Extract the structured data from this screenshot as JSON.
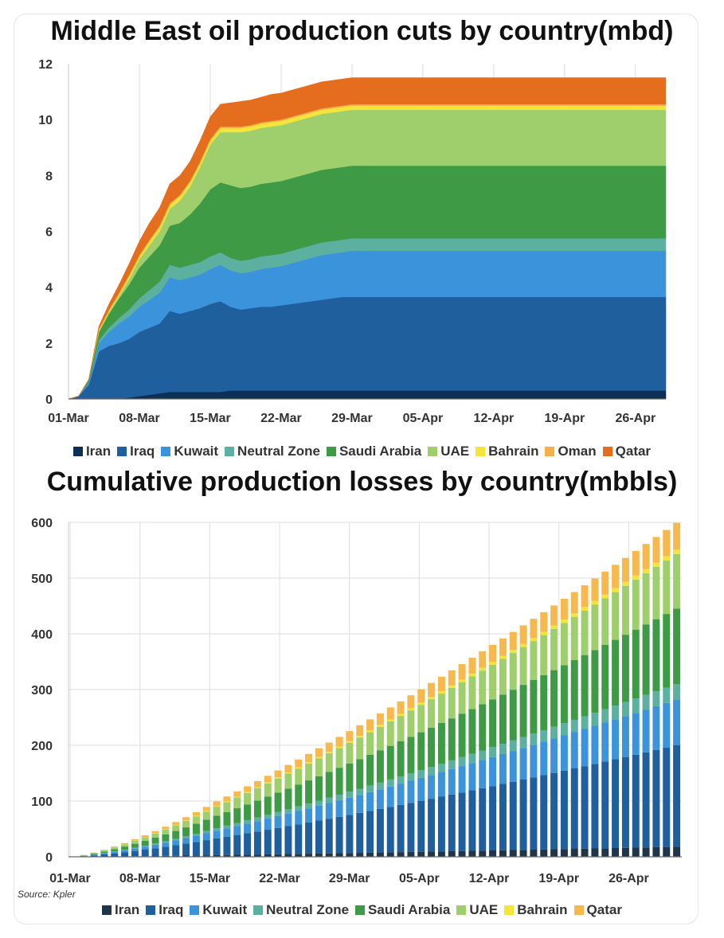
{
  "chart_data": [
    {
      "type": "area",
      "title": "Middle East oil production cuts by country(mbd)",
      "xlabel": "",
      "ylabel": "",
      "ylim": [
        0,
        12
      ],
      "yticks": [
        "0",
        "2",
        "4",
        "6",
        "8",
        "10",
        "12"
      ],
      "xticks": [
        "01-Mar",
        "08-Mar",
        "15-Mar",
        "22-Mar",
        "29-Mar",
        "05-Apr",
        "12-Apr",
        "19-Apr",
        "26-Apr"
      ],
      "x_days": [
        0,
        1,
        2,
        3,
        4,
        5,
        6,
        7,
        8,
        9,
        10,
        11,
        12,
        13,
        14,
        15,
        16,
        17,
        18,
        19,
        20,
        21,
        22,
        23,
        24,
        25,
        26,
        27,
        28,
        29,
        30,
        59
      ],
      "series": [
        {
          "name": "Iran",
          "color": "#0b2f55",
          "values": [
            0,
            0,
            0,
            0,
            0,
            0,
            0.05,
            0.1,
            0.15,
            0.2,
            0.25,
            0.25,
            0.25,
            0.25,
            0.25,
            0.25,
            0.3,
            0.3,
            0.3,
            0.3,
            0.3,
            0.3,
            0.3,
            0.3,
            0.3,
            0.3,
            0.3,
            0.3,
            0.3,
            0.3,
            0.3,
            0.3
          ]
        },
        {
          "name": "Iraq",
          "color": "#1f5f9e",
          "values": [
            0,
            0.1,
            0.5,
            1.7,
            1.9,
            2.0,
            2.1,
            2.3,
            2.4,
            2.5,
            2.9,
            2.8,
            2.9,
            3.0,
            3.15,
            3.25,
            3.0,
            2.9,
            2.95,
            3.0,
            3.0,
            3.05,
            3.1,
            3.15,
            3.2,
            3.25,
            3.3,
            3.35,
            3.35,
            3.35,
            3.35,
            3.35
          ]
        },
        {
          "name": "Kuwait",
          "color": "#3b93dc",
          "values": [
            0,
            0,
            0.1,
            0.3,
            0.5,
            0.7,
            0.8,
            0.9,
            1.0,
            1.1,
            1.2,
            1.2,
            1.2,
            1.2,
            1.25,
            1.3,
            1.3,
            1.3,
            1.3,
            1.35,
            1.4,
            1.4,
            1.45,
            1.5,
            1.55,
            1.6,
            1.6,
            1.6,
            1.65,
            1.65,
            1.65,
            1.65
          ]
        },
        {
          "name": "Neutral Zone",
          "color": "#5bb0a0",
          "values": [
            0,
            0,
            0,
            0.1,
            0.15,
            0.2,
            0.25,
            0.3,
            0.35,
            0.4,
            0.45,
            0.45,
            0.45,
            0.45,
            0.45,
            0.45,
            0.45,
            0.45,
            0.45,
            0.45,
            0.45,
            0.45,
            0.45,
            0.45,
            0.45,
            0.45,
            0.45,
            0.45,
            0.45,
            0.45,
            0.45,
            0.45
          ]
        },
        {
          "name": "Saudi Arabia",
          "color": "#3e9a45",
          "values": [
            0,
            0,
            0.1,
            0.3,
            0.5,
            0.7,
            0.9,
            1.1,
            1.2,
            1.3,
            1.4,
            1.6,
            1.8,
            2.1,
            2.4,
            2.5,
            2.6,
            2.6,
            2.6,
            2.6,
            2.6,
            2.6,
            2.6,
            2.6,
            2.6,
            2.6,
            2.6,
            2.6,
            2.6,
            2.6,
            2.6,
            2.6
          ]
        },
        {
          "name": "UAE",
          "color": "#9ecf6c",
          "values": [
            0,
            0,
            0,
            0,
            0.05,
            0.1,
            0.2,
            0.3,
            0.4,
            0.5,
            0.6,
            0.8,
            1.0,
            1.3,
            1.6,
            1.8,
            1.9,
            2.0,
            2.0,
            2.0,
            2.0,
            2.0,
            2.0,
            2.0,
            2.0,
            2.0,
            2.0,
            2.0,
            2.0,
            2.0,
            2.0,
            2.0
          ]
        },
        {
          "name": "Bahrain",
          "color": "#f5e53a",
          "values": [
            0,
            0,
            0,
            0.05,
            0.05,
            0.05,
            0.1,
            0.1,
            0.15,
            0.15,
            0.15,
            0.15,
            0.15,
            0.15,
            0.15,
            0.15,
            0.15,
            0.15,
            0.15,
            0.15,
            0.15,
            0.15,
            0.15,
            0.15,
            0.15,
            0.15,
            0.15,
            0.15,
            0.15,
            0.15,
            0.15,
            0.15
          ]
        },
        {
          "name": "Oman",
          "color": "#f5b04a",
          "values": [
            0,
            0,
            0,
            0.05,
            0.05,
            0.05,
            0.05,
            0.05,
            0.05,
            0.05,
            0.05,
            0.05,
            0.05,
            0.05,
            0.05,
            0.05,
            0.05,
            0.05,
            0.05,
            0.05,
            0.05,
            0.05,
            0.05,
            0.05,
            0.05,
            0.05,
            0.05,
            0.05,
            0.05,
            0.05,
            0.05,
            0.05
          ]
        },
        {
          "name": "Qatar",
          "color": "#e56d1e",
          "values": [
            0,
            0,
            0,
            0.1,
            0.2,
            0.3,
            0.4,
            0.5,
            0.6,
            0.65,
            0.7,
            0.7,
            0.7,
            0.75,
            0.8,
            0.8,
            0.85,
            0.9,
            0.9,
            0.9,
            0.95,
            0.95,
            0.95,
            0.95,
            0.95,
            0.95,
            0.95,
            0.95,
            0.95,
            0.95,
            0.95,
            0.95
          ]
        }
      ]
    },
    {
      "type": "bar",
      "stacked": true,
      "title": "Cumulative production losses by country(mbbls)",
      "xlabel": "",
      "ylabel": "",
      "ylim": [
        0,
        600
      ],
      "yticks": [
        "0",
        "100",
        "200",
        "300",
        "400",
        "500",
        "600"
      ],
      "xticks": [
        "01-Mar",
        "08-Mar",
        "15-Mar",
        "22-Mar",
        "29-Mar",
        "05-Apr",
        "12-Apr",
        "19-Apr",
        "26-Apr"
      ],
      "days": 60,
      "series_totals_last_day": {
        "Iran": 18,
        "Iraq": 182,
        "Kuwait": 82,
        "Neutral Zone": 28,
        "Saudi Arabia": 135,
        "UAE": 98,
        "Bahrain": 8,
        "Qatar": 48
      },
      "series": [
        {
          "name": "Iran",
          "color": "#21354a"
        },
        {
          "name": "Iraq",
          "color": "#1f5f9e"
        },
        {
          "name": "Kuwait",
          "color": "#3b93dc"
        },
        {
          "name": "Neutral Zone",
          "color": "#5bb0a0"
        },
        {
          "name": "Saudi Arabia",
          "color": "#3e9a45"
        },
        {
          "name": "UAE",
          "color": "#9ecf6c"
        },
        {
          "name": "Bahrain",
          "color": "#f5e53a"
        },
        {
          "name": "Qatar",
          "color": "#f7b84d"
        }
      ],
      "source": "Source: Kpler"
    }
  ]
}
